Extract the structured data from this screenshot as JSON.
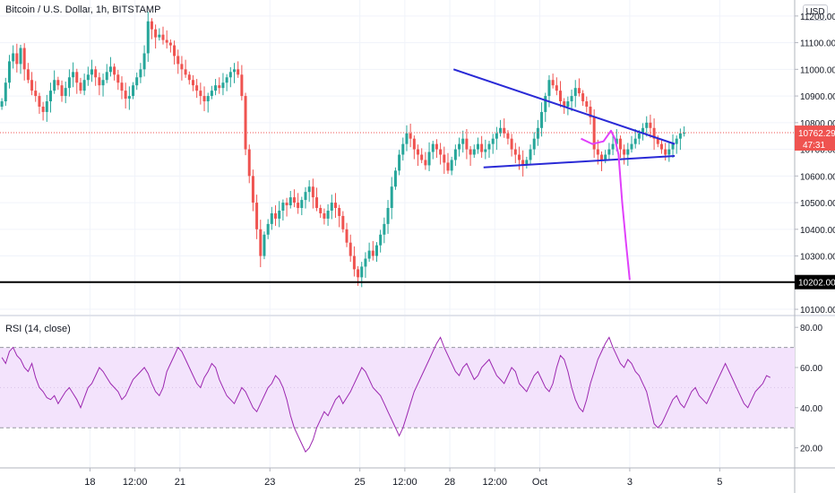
{
  "header": {
    "title": "Bitcoin / U.S. Dollar, 1h, BITSTAMP",
    "currency_label": "USD"
  },
  "rsi": {
    "title": "RSI (14, close)",
    "range": [
      10,
      85
    ],
    "band": [
      30,
      70
    ],
    "ticks": [
      "80.00",
      "60.00",
      "40.00",
      "20.00"
    ],
    "tick_values": [
      80,
      60,
      40,
      20
    ],
    "values": [
      65,
      62,
      68,
      70,
      66,
      64,
      60,
      58,
      62,
      55,
      50,
      48,
      45,
      44,
      46,
      42,
      45,
      48,
      50,
      47,
      44,
      40,
      45,
      50,
      52,
      56,
      60,
      58,
      55,
      52,
      50,
      48,
      44,
      46,
      50,
      54,
      56,
      58,
      60,
      57,
      52,
      48,
      46,
      50,
      58,
      62,
      66,
      70,
      68,
      64,
      60,
      56,
      52,
      50,
      55,
      58,
      62,
      60,
      54,
      50,
      46,
      44,
      42,
      46,
      50,
      48,
      44,
      40,
      38,
      42,
      46,
      50,
      52,
      56,
      54,
      50,
      44,
      36,
      30,
      26,
      22,
      18,
      20,
      24,
      30,
      34,
      38,
      36,
      40,
      44,
      46,
      42,
      45,
      48,
      52,
      56,
      60,
      58,
      54,
      50,
      48,
      46,
      42,
      38,
      34,
      30,
      26,
      30,
      36,
      42,
      48,
      52,
      56,
      60,
      64,
      68,
      72,
      75,
      70,
      66,
      62,
      58,
      56,
      60,
      62,
      58,
      54,
      56,
      60,
      62,
      64,
      60,
      56,
      54,
      52,
      56,
      60,
      58,
      52,
      50,
      48,
      52,
      56,
      58,
      54,
      50,
      48,
      52,
      60,
      66,
      64,
      58,
      50,
      44,
      40,
      38,
      44,
      52,
      58,
      64,
      68,
      72,
      75,
      70,
      66,
      62,
      60,
      64,
      62,
      58,
      56,
      52,
      48,
      40,
      32,
      30,
      32,
      36,
      40,
      44,
      46,
      42,
      40,
      44,
      48,
      50,
      46,
      44,
      42,
      46,
      50,
      54,
      58,
      62,
      58,
      54,
      50,
      46,
      42,
      40,
      44,
      48,
      50,
      52,
      56,
      55
    ]
  },
  "price_axis": {
    "ticks": [
      "11200.00",
      "11100.00",
      "11000.00",
      "10900.00",
      "10800.00",
      "10700.00",
      "10600.00",
      "10500.00",
      "10400.00",
      "10300.00",
      "10100.00"
    ],
    "tick_values": [
      11200,
      11100,
      11000,
      10900,
      10800,
      10700,
      10600,
      10500,
      10400,
      10300,
      10100
    ],
    "range": [
      10080,
      11260
    ],
    "current_price_label": "10762.29",
    "current_price": 10762.29,
    "countdown_label": "47:31",
    "support_price_label": "10202.00",
    "support_price": 10202
  },
  "time_axis": {
    "labels": [
      "18",
      "12:00",
      "21",
      "23",
      "25",
      "12:00",
      "28",
      "12:00",
      "Oct",
      "3",
      "5"
    ],
    "positions_hours": [
      24,
      36,
      48,
      72,
      96,
      108,
      120,
      132,
      144,
      168,
      192
    ]
  },
  "chart_data": {
    "type": "candlestick",
    "title": "Bitcoin / U.S. Dollar, 1h, BITSTAMP",
    "x_unit": "hours since 17 00:00",
    "x_range": [
      0,
      212
    ],
    "closes": [
      10880,
      10950,
      11030,
      11060,
      11020,
      11080,
      11000,
      10960,
      10920,
      10900,
      10860,
      10840,
      10880,
      10920,
      10960,
      10940,
      10900,
      10930,
      10970,
      10990,
      10950,
      10920,
      10960,
      10980,
      11000,
      10970,
      10940,
      10960,
      10990,
      11010,
      10980,
      10950,
      10920,
      10890,
      10900,
      10940,
      10970,
      11000,
      11060,
      11180,
      11150,
      11120,
      11130,
      11110,
      11100,
      11090,
      11050,
      11020,
      11000,
      10980,
      10960,
      10940,
      10920,
      10900,
      10880,
      10900,
      10920,
      10940,
      10930,
      10950,
      10970,
      10990,
      11000,
      10980,
      10900,
      10700,
      10600,
      10500,
      10400,
      10300,
      10380,
      10420,
      10460,
      10440,
      10470,
      10500,
      10490,
      10520,
      10500,
      10480,
      10510,
      10540,
      10560,
      10520,
      10480,
      10460,
      10440,
      10470,
      10500,
      10480,
      10450,
      10400,
      10350,
      10300,
      10250,
      10220,
      10260,
      10290,
      10320,
      10300,
      10340,
      10380,
      10420,
      10480,
      10560,
      10620,
      10680,
      10720,
      10760,
      10740,
      10700,
      10680,
      10660,
      10640,
      10690,
      10720,
      10700,
      10680,
      10650,
      10620,
      10660,
      10700,
      10720,
      10740,
      10700,
      10680,
      10700,
      10720,
      10690,
      10700,
      10720,
      10740,
      10760,
      10780,
      10760,
      10740,
      10700,
      10680,
      10660,
      10640,
      10660,
      10700,
      10740,
      10780,
      10840,
      10900,
      10960,
      10940,
      10920,
      10880,
      10860,
      10880,
      10900,
      10930,
      10910,
      10880,
      10860,
      10820,
      10700,
      10680,
      10660,
      10680,
      10700,
      10720,
      10740,
      10700,
      10680,
      10700,
      10720,
      10740,
      10760,
      10780,
      10800,
      10780,
      10740,
      10720,
      10700,
      10680,
      10700,
      10720,
      10740,
      10760,
      10762
    ],
    "start_hour": 0,
    "trendline_upper": {
      "from": [
        121,
        11000
      ],
      "to": [
        180,
        10720
      ]
    },
    "trendline_lower": {
      "from": [
        129,
        10632
      ],
      "to": [
        180,
        10675
      ]
    },
    "support_level": 10202,
    "projection": {
      "points": [
        [
          155,
          10740
        ],
        [
          158,
          10720
        ],
        [
          161,
          10730
        ],
        [
          163,
          10770
        ],
        [
          164,
          10740
        ],
        [
          165,
          10680
        ],
        [
          166,
          10500
        ],
        [
          167,
          10350
        ],
        [
          168,
          10210
        ]
      ]
    }
  },
  "colors": {
    "up": "#26a69a",
    "down": "#ef5350",
    "rsi_line": "#9c27b0",
    "rsi_band": "#f3e3fc",
    "trendline": "#2a2ad6",
    "projection": "#e040fb",
    "support": "#000000",
    "price_label_bg": "#ef5350"
  }
}
